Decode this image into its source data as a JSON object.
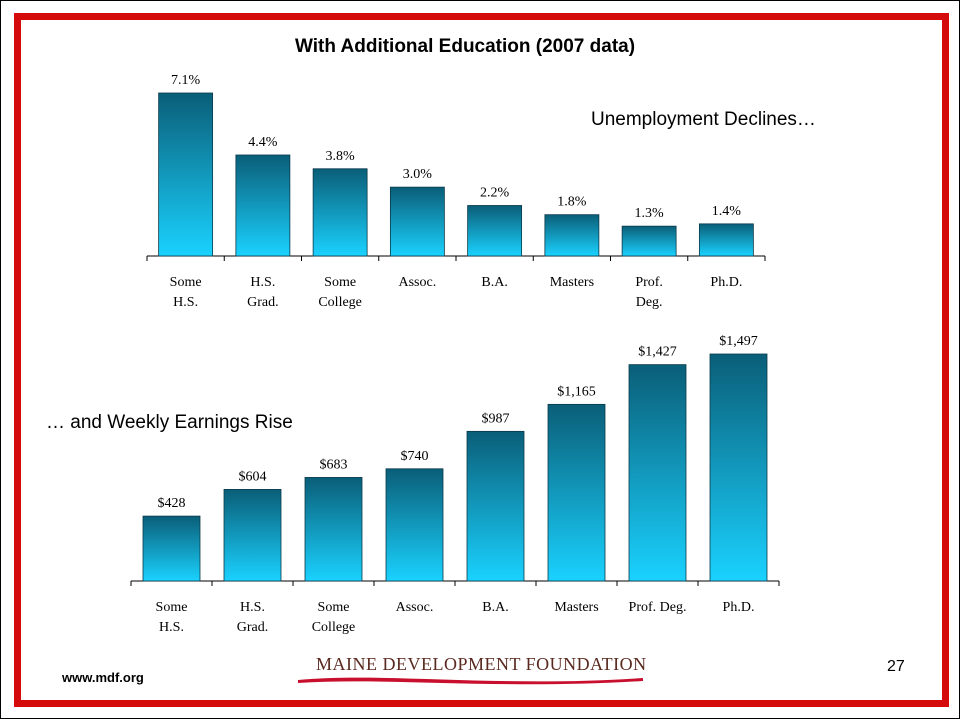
{
  "slide": {
    "title": "With Additional Education (2007 data)",
    "annotation_unemployment": "Unemployment Declines…",
    "annotation_earnings": "… and Weekly Earnings Rise",
    "footer_url": "www.mdf.org",
    "footer_logo_text": "MAINE DEVELOPMENT FOUNDATION",
    "page_number": "27",
    "colors": {
      "border": "#d50b0b",
      "bar_top": "#0a5e78",
      "bar_bottom": "#1ad2ff"
    }
  },
  "chart_data": [
    {
      "type": "bar",
      "name": "unemployment",
      "categories": [
        [
          "Some",
          "H.S."
        ],
        [
          "H.S.",
          "Grad."
        ],
        [
          "Some",
          "College"
        ],
        [
          "Assoc."
        ],
        [
          "B.A."
        ],
        [
          "Masters"
        ],
        [
          "Prof.",
          "Deg."
        ],
        [
          "Ph.D."
        ]
      ],
      "values": [
        7.1,
        4.4,
        3.8,
        3.0,
        2.2,
        1.8,
        1.3,
        1.4
      ],
      "value_labels": [
        "7.1%",
        "4.4%",
        "3.8%",
        "3.0%",
        "2.2%",
        "1.8%",
        "1.3%",
        "1.4%"
      ],
      "ylim": [
        0,
        7.1
      ],
      "grid": false,
      "legend": "none"
    },
    {
      "type": "bar",
      "name": "weekly-earnings",
      "categories": [
        [
          "Some",
          "H.S."
        ],
        [
          "H.S.",
          "Grad."
        ],
        [
          "Some",
          "College"
        ],
        [
          "Assoc."
        ],
        [
          "B.A."
        ],
        [
          "Masters"
        ],
        [
          "Prof. Deg."
        ],
        [
          "Ph.D."
        ]
      ],
      "values": [
        428,
        604,
        683,
        740,
        987,
        1165,
        1427,
        1497
      ],
      "value_labels": [
        "$428",
        "$604",
        "$683",
        "$740",
        "$987",
        "$1,165",
        "$1,427",
        "$1,497"
      ],
      "ylim": [
        0,
        1497
      ],
      "grid": false,
      "legend": "none"
    }
  ]
}
